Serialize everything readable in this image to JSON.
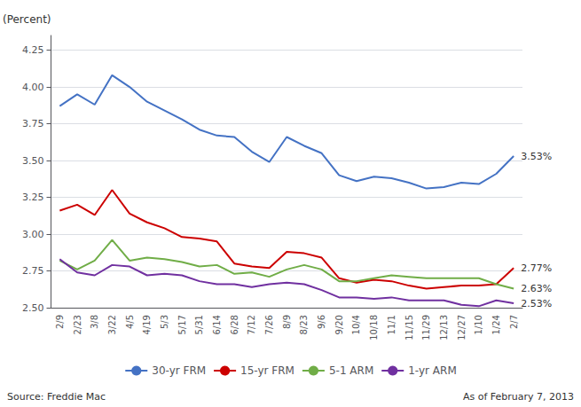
{
  "chart_data": {
    "type": "line",
    "ylabel": "(Percent)",
    "categories": [
      "2/9",
      "2/23",
      "3/8",
      "3/22",
      "4/5",
      "4/19",
      "5/3",
      "5/17",
      "5/31",
      "6/14",
      "6/28",
      "7/12",
      "7/26",
      "8/9",
      "8/23",
      "9/6",
      "9/20",
      "10/4",
      "10/18",
      "11/1",
      "11/15",
      "11/29",
      "12/13",
      "12/27",
      "1/10",
      "1/24",
      "2/7"
    ],
    "series": [
      {
        "name": "30-yr FRM",
        "color": "#4472C4",
        "values": [
          3.87,
          3.95,
          3.88,
          4.08,
          4.0,
          3.9,
          3.84,
          3.78,
          3.71,
          3.67,
          3.66,
          3.56,
          3.49,
          3.66,
          3.6,
          3.55,
          3.4,
          3.36,
          3.39,
          3.38,
          3.35,
          3.31,
          3.32,
          3.35,
          3.34,
          3.41,
          3.53
        ]
      },
      {
        "name": "15-yr FRM",
        "color": "#CC0000",
        "values": [
          3.16,
          3.2,
          3.13,
          3.3,
          3.14,
          3.08,
          3.04,
          2.98,
          2.97,
          2.95,
          2.8,
          2.78,
          2.77,
          2.88,
          2.87,
          2.84,
          2.7,
          2.67,
          2.69,
          2.68,
          2.65,
          2.63,
          2.64,
          2.65,
          2.65,
          2.66,
          2.77
        ]
      },
      {
        "name": "5-1 ARM",
        "color": "#70AD47",
        "values": [
          2.82,
          2.76,
          2.82,
          2.96,
          2.82,
          2.84,
          2.83,
          2.81,
          2.78,
          2.79,
          2.73,
          2.74,
          2.71,
          2.76,
          2.79,
          2.76,
          2.68,
          2.68,
          2.7,
          2.72,
          2.71,
          2.7,
          2.7,
          2.7,
          2.7,
          2.66,
          2.63
        ]
      },
      {
        "name": "1-yr ARM",
        "color": "#7030A0",
        "values": [
          2.83,
          2.74,
          2.72,
          2.79,
          2.78,
          2.72,
          2.73,
          2.72,
          2.68,
          2.66,
          2.66,
          2.64,
          2.66,
          2.67,
          2.66,
          2.62,
          2.57,
          2.57,
          2.56,
          2.57,
          2.55,
          2.55,
          2.55,
          2.52,
          2.51,
          2.55,
          2.53
        ]
      }
    ],
    "annotations": [
      {
        "text": "3.53%",
        "x": "2/7",
        "y": 3.53,
        "series": "30-yr FRM"
      },
      {
        "text": "2.77%",
        "x": "2/7",
        "y": 2.77,
        "series": "15-yr FRM"
      },
      {
        "text": "2.63%",
        "x": "2/7",
        "y": 2.63,
        "series": "5-1 ARM"
      },
      {
        "text": "2.53%",
        "x": "2/7",
        "y": 2.53,
        "series": "1-yr ARM"
      }
    ],
    "footnotes": [
      "Source: Freddie Mac",
      "As of February 7, 2013"
    ],
    "ylim": [
      2.5,
      4.35
    ],
    "yticks": [
      {
        "value": 2.5,
        "label": "2.50"
      },
      2.75,
      {
        "value": 3.0,
        "label": "3.00"
      },
      3.25,
      {
        "value": 3.5,
        "label": "3.50"
      },
      3.75,
      {
        "value": 4.0,
        "label": "4.00"
      },
      4.25
    ],
    "grid": true,
    "legend": "bottom"
  }
}
